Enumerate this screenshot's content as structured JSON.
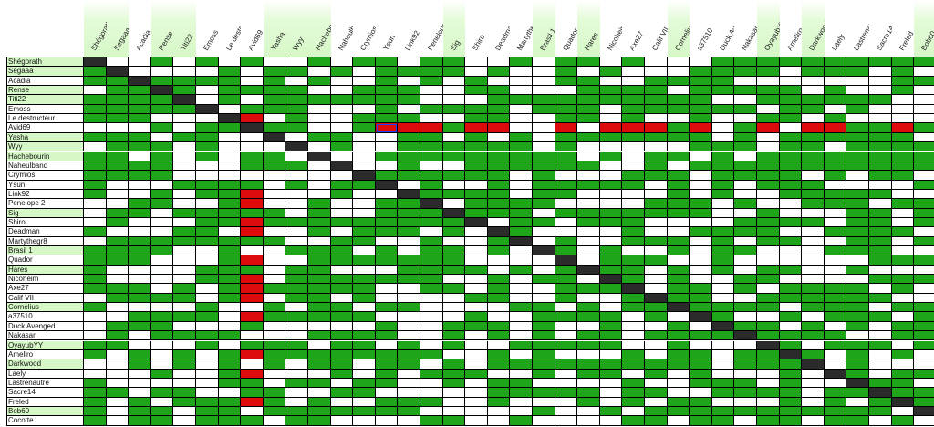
{
  "sheet": {
    "names": [
      "Shégorath",
      "Segaaa",
      "Acadia",
      "Rense",
      "Titi22",
      "Emoss",
      "Le destructeur",
      "Avid69",
      "Yasha",
      "Wyy",
      "Hachebourin",
      "Naheulband",
      "Crymios",
      "Ysun",
      "Link92",
      "Penelope 2",
      "Sig",
      "Shiro",
      "Deadman",
      "Martythegr8",
      "Brasil 1",
      "Quador",
      "Hares",
      "Nicoheim",
      "Axe27",
      "Calif VII",
      "Cornelius",
      "a37510",
      "Duck Avenged",
      "Nakasar",
      "OyayubYY",
      "Ameliro",
      "Darkwood",
      "Laely",
      "Lastrenautre",
      "Sacre14",
      "Freled",
      "Bob60",
      "Cocotte"
    ],
    "highlighted": [
      "Shégorath",
      "Segaaa",
      "Rense",
      "Titi22",
      "Yasha",
      "Wyy",
      "Hachebourin",
      "Sig",
      "Brasil 1",
      "Hares",
      "Cornelius",
      "OyayubYY",
      "Darkwood",
      "Bob60"
    ],
    "red_row": "Avid69",
    "red_col": "Avid69",
    "red_row_cols": [
      "Ysun",
      "Link92",
      "Penelope 2",
      "Shiro",
      "Deadman",
      "Quador",
      "Nicoheim",
      "Axe27",
      "Calif VII",
      "a37510",
      "OyayubYY",
      "Darkwood",
      "Laely",
      "Freled"
    ],
    "red_col_rows": [
      "Le destructeur",
      "Link92",
      "Penelope 2",
      "Shiro",
      "Deadman",
      "Quador",
      "Nicoheim",
      "Axe27",
      "Calif VII",
      "a37510",
      "Ameliro",
      "Laely",
      "Freled"
    ],
    "selected_cell": "Avid69 / Ysun",
    "colors": {
      "green": "#1fa51a",
      "red": "#dd0b0b",
      "self": "#2b2b2b",
      "header_highlight": "#d6f8c7"
    }
  }
}
